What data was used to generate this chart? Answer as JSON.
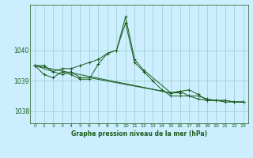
{
  "title": "Graphe pression niveau de la mer (hPa)",
  "bg_color": "#cceeff",
  "grid_color": "#99cccc",
  "line_color": "#1a5c1a",
  "xlim": [
    -0.5,
    23.5
  ],
  "ylim": [
    1037.6,
    1041.5
  ],
  "yticks": [
    1038,
    1039,
    1040
  ],
  "xticks": [
    0,
    1,
    2,
    3,
    4,
    5,
    6,
    7,
    8,
    9,
    10,
    11,
    12,
    13,
    14,
    15,
    16,
    17,
    18,
    19,
    20,
    21,
    22,
    23
  ],
  "series": [
    [
      1039.5,
      1039.5,
      1039.3,
      1039.4,
      1039.4,
      1039.5,
      1039.6,
      1039.7,
      1039.9,
      1040.0,
      1040.9,
      1039.6,
      1039.3,
      1039.0,
      1038.7,
      1038.5,
      1038.5,
      1038.5,
      1038.5,
      1038.4,
      1038.35,
      1038.3,
      1038.3,
      1038.3
    ],
    [
      1039.5,
      1039.2,
      1039.1,
      1039.3,
      1039.2,
      1039.05,
      1039.05,
      1039.55,
      1039.9,
      1040.0,
      1041.1,
      1039.7,
      1039.35,
      null,
      null,
      1038.6,
      1038.6,
      null,
      null,
      null,
      null,
      null,
      null,
      null
    ],
    [
      1039.5,
      null,
      null,
      1039.2,
      1039.3,
      1039.1,
      1039.1,
      null,
      null,
      null,
      null,
      null,
      null,
      null,
      null,
      1038.6,
      1038.65,
      1038.7,
      1038.55,
      1038.35,
      1038.35,
      1038.35,
      1038.3,
      1038.3
    ],
    [
      1039.5,
      null,
      null,
      null,
      null,
      null,
      null,
      null,
      null,
      null,
      null,
      null,
      null,
      null,
      null,
      1038.6,
      1038.65,
      1038.5,
      1038.4,
      1038.35,
      1038.35,
      1038.35,
      1038.3,
      1038.3
    ]
  ]
}
